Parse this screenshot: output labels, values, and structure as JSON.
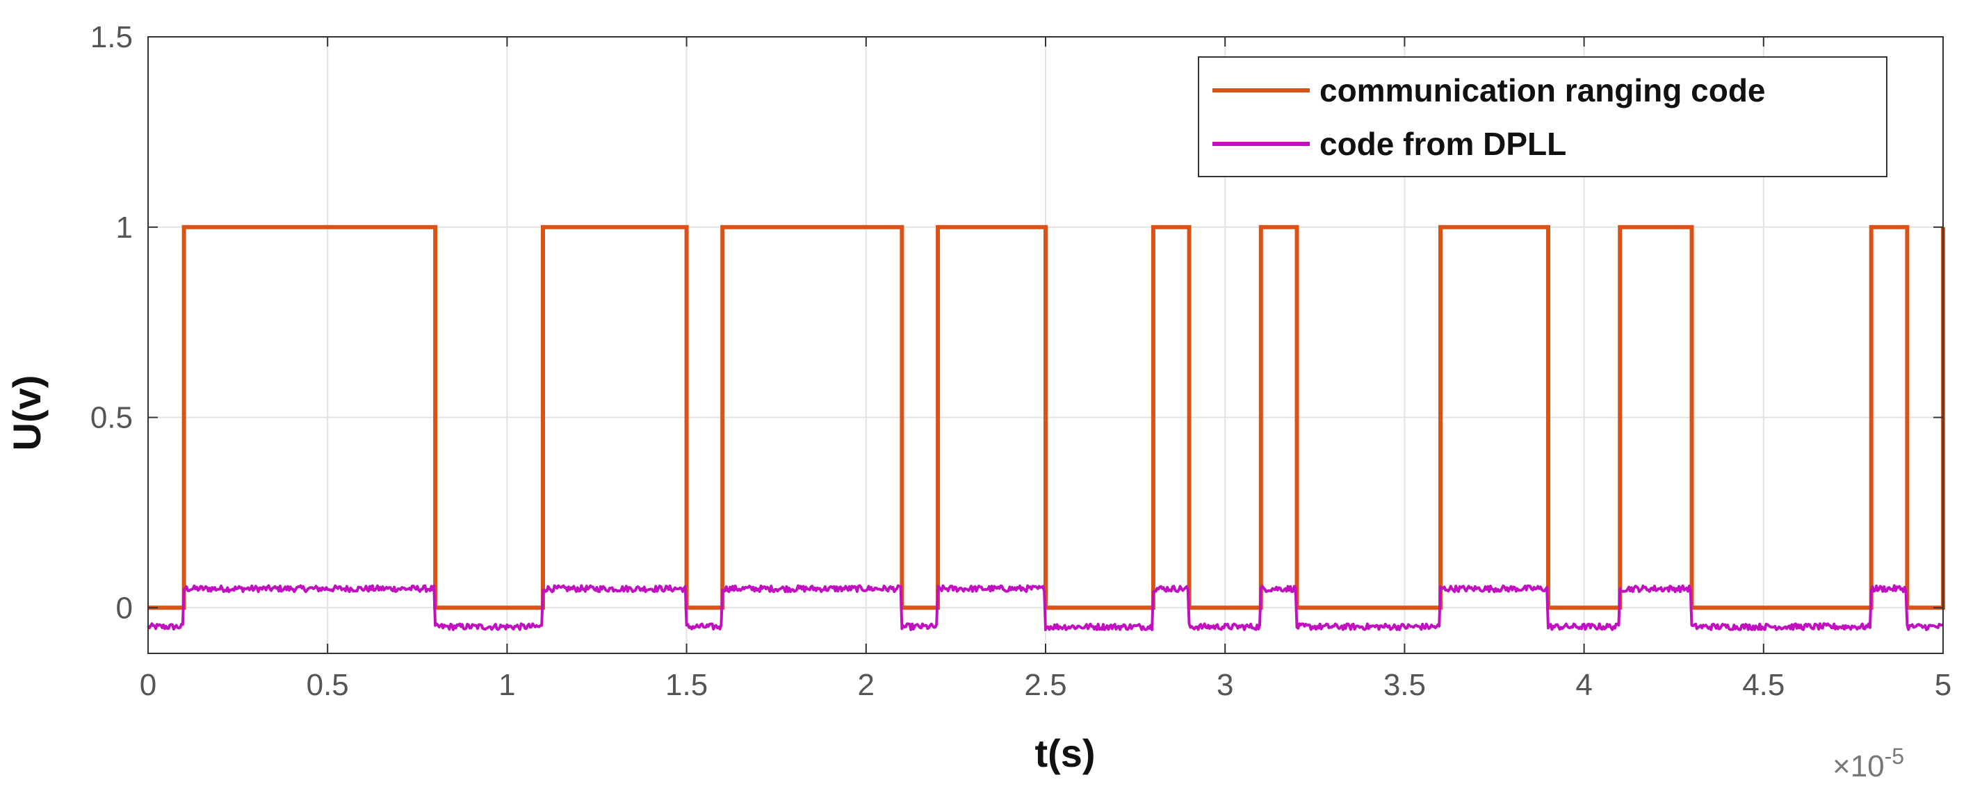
{
  "chart_data": {
    "type": "line",
    "xlabel": "t(s)",
    "ylabel": "U(v)",
    "x_exponent_label": {
      "base": "×10",
      "exponent": "-5"
    },
    "xlim": [
      0,
      5
    ],
    "ylim": [
      -0.12,
      1.5
    ],
    "x_ticks": [
      "0",
      "0.5",
      "1",
      "1.5",
      "2",
      "2.5",
      "3",
      "3.5",
      "4",
      "4.5",
      "5"
    ],
    "y_ticks": [
      "0",
      "0.5",
      "1",
      "1.5"
    ],
    "grid": true,
    "legend_position": "top-right",
    "series": [
      {
        "name": "communication ranging code",
        "color": "#D95319",
        "high_intervals": [
          [
            0.1,
            0.8
          ],
          [
            1.1,
            1.5
          ],
          [
            1.6,
            2.1
          ],
          [
            2.2,
            2.5
          ],
          [
            2.8,
            2.9
          ],
          [
            3.1,
            3.2
          ],
          [
            3.6,
            3.9
          ],
          [
            4.1,
            4.3
          ],
          [
            4.8,
            4.9
          ],
          [
            5.0,
            5.0
          ]
        ],
        "low_value": 0,
        "high_value": 1
      },
      {
        "name": "code from DPLL",
        "color": "#C010C0",
        "high_intervals": [
          [
            0.1,
            0.8
          ],
          [
            1.1,
            1.5
          ],
          [
            1.6,
            2.1
          ],
          [
            2.2,
            2.5
          ],
          [
            2.8,
            2.9
          ],
          [
            3.1,
            3.2
          ],
          [
            3.6,
            3.9
          ],
          [
            4.1,
            4.3
          ],
          [
            4.8,
            4.9
          ]
        ],
        "low_value": -0.05,
        "high_value": 0.05,
        "noise_amplitude": 0.008
      }
    ]
  }
}
